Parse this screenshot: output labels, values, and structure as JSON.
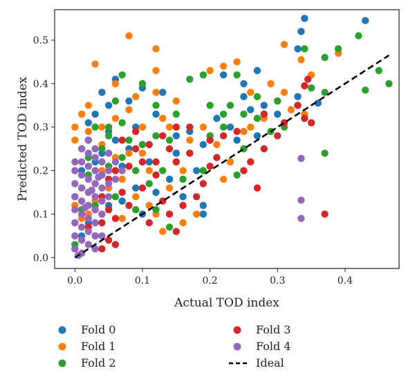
{
  "chart_data": {
    "type": "scatter",
    "title": "",
    "xlabel": "Actual TOD index",
    "ylabel": "Predicted TOD index",
    "xlim": [
      -0.03,
      0.48
    ],
    "ylim": [
      -0.025,
      0.57
    ],
    "xticks": [
      0.0,
      0.1,
      0.2,
      0.3,
      0.4
    ],
    "xtick_labels": [
      "0.0",
      "0.1",
      "0.2",
      "0.3",
      "0.4"
    ],
    "yticks": [
      0.0,
      0.1,
      0.2,
      0.3,
      0.4,
      0.5
    ],
    "ytick_labels": [
      "0.0",
      "0.1",
      "0.2",
      "0.3",
      "0.4",
      "0.5"
    ],
    "grid": false,
    "legend_position": "below",
    "series": [
      {
        "name": "Fold 0",
        "color": "#1f77b4",
        "points": [
          [
            0.34,
            0.55
          ],
          [
            0.43,
            0.545
          ],
          [
            0.335,
            0.52
          ],
          [
            0.33,
            0.48
          ],
          [
            0.27,
            0.43
          ],
          [
            0.22,
            0.42
          ],
          [
            0.25,
            0.37
          ],
          [
            0.21,
            0.32
          ],
          [
            0.19,
            0.26
          ],
          [
            0.13,
            0.38
          ],
          [
            0.1,
            0.39
          ],
          [
            0.08,
            0.36
          ],
          [
            0.06,
            0.41
          ],
          [
            0.04,
            0.38
          ],
          [
            0.05,
            0.35
          ],
          [
            0.03,
            0.33
          ],
          [
            0.02,
            0.31
          ],
          [
            0.05,
            0.29
          ],
          [
            0.09,
            0.3
          ],
          [
            0.12,
            0.33
          ],
          [
            0.15,
            0.28
          ],
          [
            0.17,
            0.29
          ],
          [
            0.2,
            0.27
          ],
          [
            0.23,
            0.3
          ],
          [
            0.24,
            0.27
          ],
          [
            0.27,
            0.28
          ],
          [
            0.3,
            0.33
          ],
          [
            0.33,
            0.37
          ],
          [
            0.36,
            0.355
          ],
          [
            0.19,
            0.12
          ],
          [
            0.19,
            0.1
          ],
          [
            0.16,
            0.14
          ],
          [
            0.14,
            0.18
          ],
          [
            0.11,
            0.22
          ],
          [
            0.08,
            0.25
          ],
          [
            0.06,
            0.27
          ],
          [
            0.04,
            0.24
          ],
          [
            0.03,
            0.22
          ],
          [
            0.02,
            0.27
          ],
          [
            0.01,
            0.2
          ],
          [
            0.07,
            0.21
          ],
          [
            0.09,
            0.16
          ],
          [
            0.12,
            0.15
          ],
          [
            0.1,
            0.1
          ],
          [
            0.07,
            0.13
          ],
          [
            0.05,
            0.12
          ],
          [
            0.02,
            0.08
          ],
          [
            0.0,
            0.02
          ],
          [
            0.01,
            0.05
          ],
          [
            0.15,
            0.24
          ],
          [
            0.18,
            0.2
          ],
          [
            0.26,
            0.34
          ],
          [
            0.28,
            0.35
          ],
          [
            0.25,
            0.4
          ]
        ]
      },
      {
        "name": "Fold 1",
        "color": "#ff7f0e",
        "points": [
          [
            0.08,
            0.51
          ],
          [
            0.12,
            0.48
          ],
          [
            0.31,
            0.49
          ],
          [
            0.39,
            0.47
          ],
          [
            0.335,
            0.455
          ],
          [
            0.03,
            0.445
          ],
          [
            0.12,
            0.43
          ],
          [
            0.2,
            0.43
          ],
          [
            0.22,
            0.44
          ],
          [
            0.24,
            0.45
          ],
          [
            0.29,
            0.4
          ],
          [
            0.3,
            0.36
          ],
          [
            0.32,
            0.34
          ],
          [
            0.34,
            0.33
          ],
          [
            0.31,
            0.38
          ],
          [
            0.26,
            0.38
          ],
          [
            0.12,
            0.38
          ],
          [
            0.09,
            0.37
          ],
          [
            0.06,
            0.4
          ],
          [
            0.0,
            0.3
          ],
          [
            0.01,
            0.33
          ],
          [
            0.02,
            0.35
          ],
          [
            0.0,
            0.27
          ],
          [
            0.01,
            0.25
          ],
          [
            0.04,
            0.3
          ],
          [
            0.06,
            0.32
          ],
          [
            0.08,
            0.34
          ],
          [
            0.1,
            0.3
          ],
          [
            0.13,
            0.32
          ],
          [
            0.15,
            0.36
          ],
          [
            0.14,
            0.3
          ],
          [
            0.17,
            0.27
          ],
          [
            0.19,
            0.3
          ],
          [
            0.21,
            0.26
          ],
          [
            0.23,
            0.22
          ],
          [
            0.25,
            0.29
          ],
          [
            0.26,
            0.3
          ],
          [
            0.28,
            0.32
          ],
          [
            0.22,
            0.18
          ],
          [
            0.16,
            0.2
          ],
          [
            0.14,
            0.16
          ],
          [
            0.11,
            0.2
          ],
          [
            0.09,
            0.14
          ],
          [
            0.07,
            0.18
          ],
          [
            0.05,
            0.16
          ],
          [
            0.03,
            0.13
          ],
          [
            0.02,
            0.1
          ],
          [
            0.02,
            0.15
          ],
          [
            0.0,
            0.12
          ],
          [
            0.01,
            0.09
          ],
          [
            0.0,
            0.05
          ],
          [
            0.04,
            0.2
          ],
          [
            0.06,
            0.23
          ],
          [
            0.08,
            0.24
          ],
          [
            0.12,
            0.1
          ],
          [
            0.16,
            0.08
          ],
          [
            0.18,
            0.1
          ],
          [
            0.13,
            0.06
          ],
          [
            0.11,
            0.12
          ],
          [
            0.07,
            0.09
          ],
          [
            0.35,
            0.42
          ],
          [
            0.1,
            0.24
          ],
          [
            0.04,
            0.26
          ],
          [
            0.02,
            0.29
          ]
        ]
      },
      {
        "name": "Fold 2",
        "color": "#2ca02c",
        "points": [
          [
            0.42,
            0.51
          ],
          [
            0.39,
            0.48
          ],
          [
            0.34,
            0.48
          ],
          [
            0.45,
            0.43
          ],
          [
            0.465,
            0.4
          ],
          [
            0.43,
            0.385
          ],
          [
            0.37,
            0.46
          ],
          [
            0.37,
            0.38
          ],
          [
            0.35,
            0.39
          ],
          [
            0.37,
            0.24
          ],
          [
            0.33,
            0.35
          ],
          [
            0.3,
            0.36
          ],
          [
            0.27,
            0.37
          ],
          [
            0.24,
            0.42
          ],
          [
            0.19,
            0.42
          ],
          [
            0.17,
            0.41
          ],
          [
            0.07,
            0.42
          ],
          [
            0.1,
            0.4
          ],
          [
            0.12,
            0.35
          ],
          [
            0.15,
            0.33
          ],
          [
            0.06,
            0.36
          ],
          [
            0.03,
            0.3
          ],
          [
            0.05,
            0.28
          ],
          [
            0.07,
            0.31
          ],
          [
            0.08,
            0.27
          ],
          [
            0.1,
            0.26
          ],
          [
            0.12,
            0.28
          ],
          [
            0.14,
            0.27
          ],
          [
            0.17,
            0.24
          ],
          [
            0.2,
            0.28
          ],
          [
            0.22,
            0.3
          ],
          [
            0.25,
            0.33
          ],
          [
            0.27,
            0.32
          ],
          [
            0.29,
            0.29
          ],
          [
            0.24,
            0.19
          ],
          [
            0.25,
            0.25
          ],
          [
            0.19,
            0.2
          ],
          [
            0.16,
            0.18
          ],
          [
            0.13,
            0.2
          ],
          [
            0.11,
            0.17
          ],
          [
            0.09,
            0.2
          ],
          [
            0.07,
            0.23
          ],
          [
            0.05,
            0.21
          ],
          [
            0.04,
            0.25
          ],
          [
            0.02,
            0.23
          ],
          [
            0.02,
            0.19
          ],
          [
            0.01,
            0.16
          ],
          [
            0.0,
            0.14
          ],
          [
            0.01,
            0.11
          ],
          [
            0.0,
            0.08
          ],
          [
            0.0,
            0.03
          ],
          [
            0.03,
            0.12
          ],
          [
            0.06,
            0.14
          ],
          [
            0.09,
            0.11
          ],
          [
            0.14,
            0.07
          ],
          [
            0.12,
            0.11
          ],
          [
            0.22,
            0.33
          ],
          [
            0.2,
            0.35
          ],
          [
            0.23,
            0.35
          ],
          [
            0.31,
            0.3
          ],
          [
            0.28,
            0.33
          ],
          [
            0.05,
            0.3
          ]
        ]
      },
      {
        "name": "Fold 3",
        "color": "#d62728",
        "points": [
          [
            0.345,
            0.41
          ],
          [
            0.34,
            0.395
          ],
          [
            0.33,
            0.35
          ],
          [
            0.34,
            0.32
          ],
          [
            0.35,
            0.31
          ],
          [
            0.31,
            0.31
          ],
          [
            0.28,
            0.33
          ],
          [
            0.28,
            0.25
          ],
          [
            0.26,
            0.22
          ],
          [
            0.25,
            0.2
          ],
          [
            0.27,
            0.16
          ],
          [
            0.21,
            0.23
          ],
          [
            0.2,
            0.21
          ],
          [
            0.19,
            0.17
          ],
          [
            0.17,
            0.24
          ],
          [
            0.15,
            0.22
          ],
          [
            0.16,
            0.12
          ],
          [
            0.14,
            0.1
          ],
          [
            0.13,
            0.13
          ],
          [
            0.1,
            0.16
          ],
          [
            0.12,
            0.19
          ],
          [
            0.08,
            0.21
          ],
          [
            0.06,
            0.2
          ],
          [
            0.07,
            0.15
          ],
          [
            0.05,
            0.18
          ],
          [
            0.04,
            0.14
          ],
          [
            0.05,
            0.11
          ],
          [
            0.06,
            0.09
          ],
          [
            0.03,
            0.11
          ],
          [
            0.04,
            0.08
          ],
          [
            0.05,
            0.04
          ],
          [
            0.06,
            0.03
          ],
          [
            0.04,
            0.02
          ],
          [
            0.03,
            0.05
          ],
          [
            0.02,
            0.07
          ],
          [
            0.09,
            0.25
          ],
          [
            0.1,
            0.22
          ],
          [
            0.11,
            0.26
          ],
          [
            0.13,
            0.28
          ],
          [
            0.09,
            0.29
          ],
          [
            0.07,
            0.27
          ],
          [
            0.15,
            0.3
          ],
          [
            0.17,
            0.3
          ],
          [
            0.11,
            0.08
          ],
          [
            0.08,
            0.12
          ],
          [
            0.22,
            0.28
          ],
          [
            0.24,
            0.29
          ],
          [
            0.2,
            0.27
          ],
          [
            0.3,
            0.28
          ],
          [
            0.37,
            0.1
          ],
          [
            0.15,
            0.06
          ],
          [
            0.18,
            0.14
          ],
          [
            0.12,
            0.22
          ],
          [
            0.14,
            0.25
          ]
        ]
      },
      {
        "name": "Fold 4",
        "color": "#9467bd",
        "points": [
          [
            0.335,
            0.228
          ],
          [
            0.335,
            0.132
          ],
          [
            0.335,
            0.09
          ],
          [
            0.0,
            0.02
          ],
          [
            0.0,
            0.05
          ],
          [
            0.0,
            0.08
          ],
          [
            0.0,
            0.11
          ],
          [
            0.0,
            0.14
          ],
          [
            0.0,
            0.17
          ],
          [
            0.0,
            0.2
          ],
          [
            0.0,
            0.22
          ],
          [
            0.01,
            0.01
          ],
          [
            0.01,
            0.04
          ],
          [
            0.01,
            0.07
          ],
          [
            0.01,
            0.1
          ],
          [
            0.01,
            0.13
          ],
          [
            0.01,
            0.16
          ],
          [
            0.01,
            0.19
          ],
          [
            0.01,
            0.22
          ],
          [
            0.02,
            0.03
          ],
          [
            0.02,
            0.06
          ],
          [
            0.02,
            0.09
          ],
          [
            0.02,
            0.12
          ],
          [
            0.02,
            0.15
          ],
          [
            0.02,
            0.18
          ],
          [
            0.02,
            0.21
          ],
          [
            0.02,
            0.24
          ],
          [
            0.03,
            0.02
          ],
          [
            0.03,
            0.05
          ],
          [
            0.03,
            0.08
          ],
          [
            0.03,
            0.11
          ],
          [
            0.03,
            0.14
          ],
          [
            0.03,
            0.17
          ],
          [
            0.03,
            0.2
          ],
          [
            0.03,
            0.23
          ],
          [
            0.03,
            0.25
          ],
          [
            0.04,
            0.1
          ],
          [
            0.04,
            0.13
          ],
          [
            0.04,
            0.16
          ],
          [
            0.04,
            0.19
          ],
          [
            0.04,
            0.22
          ],
          [
            0.05,
            0.14
          ],
          [
            0.05,
            0.17
          ],
          [
            0.05,
            0.2
          ],
          [
            0.05,
            0.24
          ],
          [
            0.06,
            0.18
          ],
          [
            0.06,
            0.22
          ],
          [
            0.07,
            0.2
          ],
          [
            0.02,
            0.27
          ],
          [
            0.01,
            0.25
          ],
          [
            0.04,
            0.05
          ],
          [
            0.005,
            0.005
          ],
          [
            0.015,
            0.115
          ],
          [
            0.025,
            0.155
          ],
          [
            0.035,
            0.185
          ]
        ]
      }
    ],
    "reference_line": {
      "name": "Ideal",
      "color": "#000000",
      "style": "dashed",
      "x": [
        0.0,
        0.465
      ],
      "y": [
        0.0,
        0.465
      ]
    }
  }
}
